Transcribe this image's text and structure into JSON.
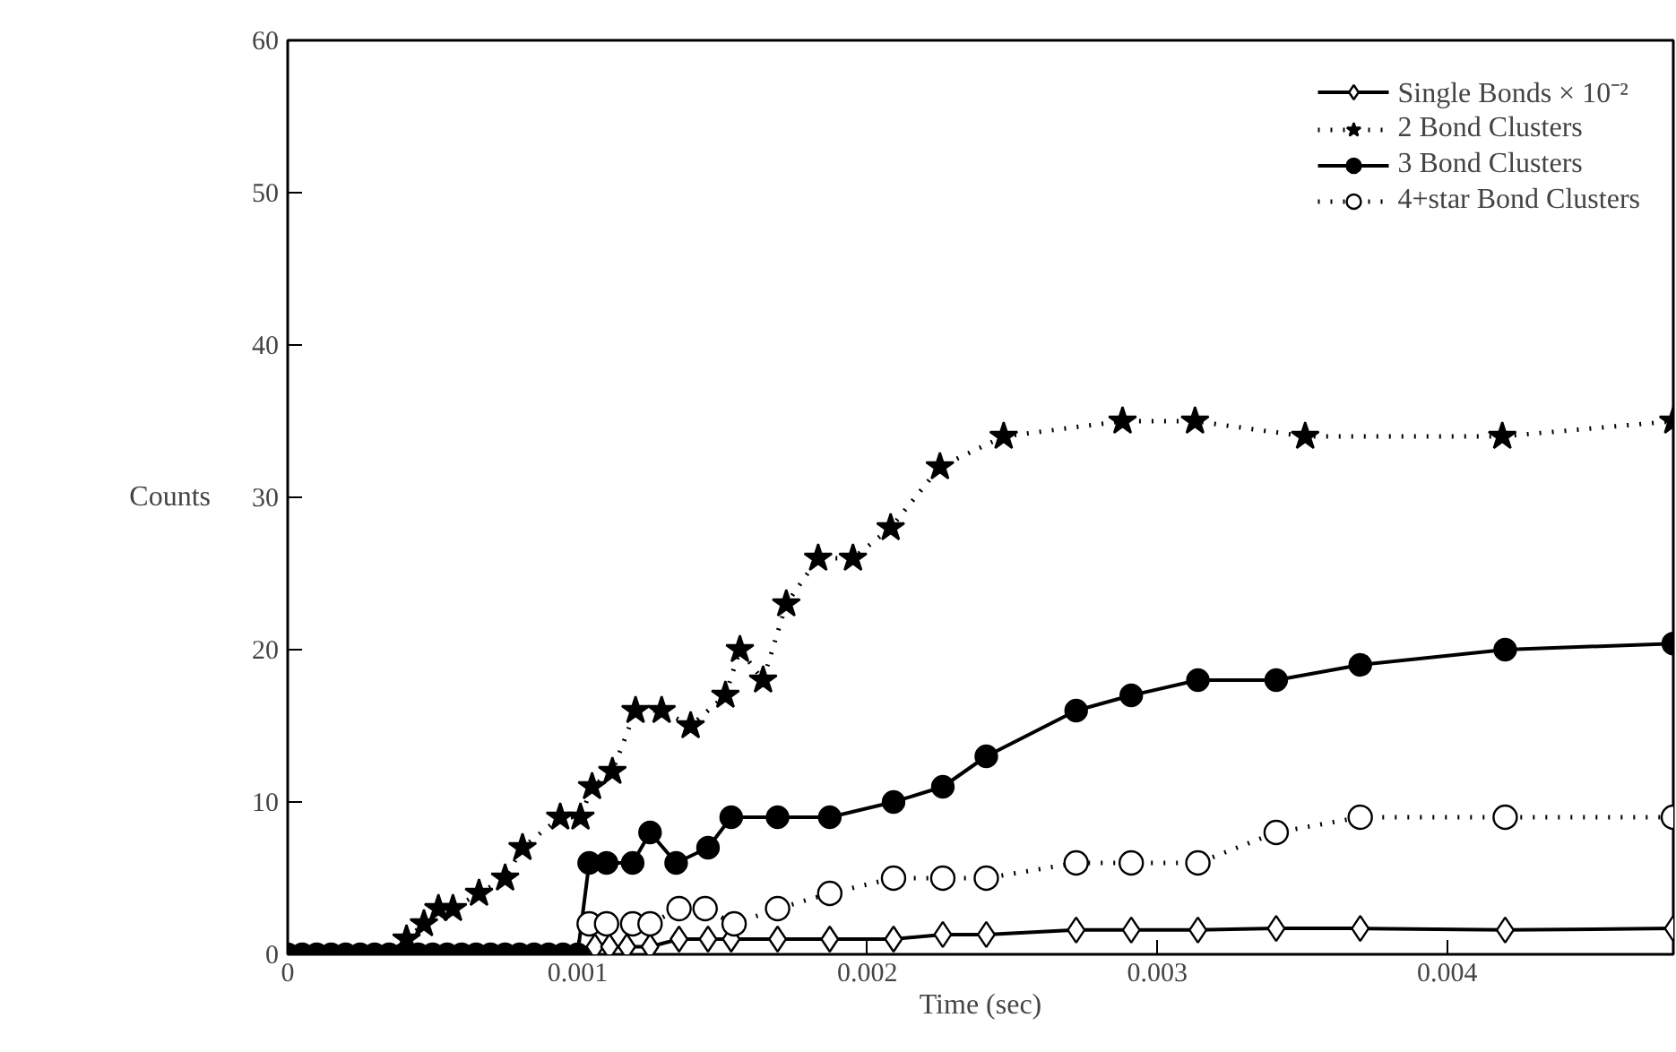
{
  "chart_data": {
    "type": "line",
    "xlabel": "Time (sec)",
    "ylabel": "Counts",
    "xlim": [
      0,
      0.00478
    ],
    "ylim": [
      0,
      60
    ],
    "xticks": [
      0,
      0.001,
      0.002,
      0.003,
      0.004
    ],
    "yticks": [
      0,
      10,
      20,
      30,
      40,
      50,
      60
    ],
    "grid": false,
    "legend": "top right",
    "series": [
      {
        "name": "Single Bonds × 10⁻²",
        "color": "#000000",
        "marker": "diamond",
        "line_style": "solid",
        "x": [
          0.00106,
          0.00111,
          0.00117,
          0.00125,
          0.00135,
          0.00145,
          0.00153,
          0.00169,
          0.00187,
          0.00209,
          0.00226,
          0.00241,
          0.00272,
          0.00291,
          0.00314,
          0.00341,
          0.0037,
          0.0042,
          0.00478
        ],
        "values": [
          0.5,
          0.5,
          0.5,
          0.5,
          1,
          1,
          1,
          1,
          1,
          1,
          1.3,
          1.3,
          1.6,
          1.6,
          1.6,
          1.7,
          1.7,
          1.6,
          1.7
        ]
      },
      {
        "name": "2 Bond Clusters",
        "color": "#000000",
        "marker": "star",
        "line_style": "dotted",
        "x": [
          0.00041,
          0.00047,
          0.00052,
          0.00057,
          0.00066,
          0.00075,
          0.00081,
          0.00094,
          0.00101,
          0.00105,
          0.00112,
          0.0012,
          0.00129,
          0.00139,
          0.00151,
          0.00156,
          0.00164,
          0.00172,
          0.00183,
          0.00195,
          0.00208,
          0.00225,
          0.00247,
          0.00288,
          0.00313,
          0.00351,
          0.00419,
          0.00478
        ],
        "values": [
          1,
          2,
          3,
          3,
          4,
          5,
          7,
          9,
          9,
          11,
          12,
          16,
          16,
          15,
          17,
          20,
          18,
          23,
          26,
          26,
          28,
          32,
          34,
          35,
          35,
          34,
          34,
          35
        ]
      },
      {
        "name": "3 Bond Clusters",
        "color": "#000000",
        "marker": "circle",
        "line_style": "solid",
        "x": [
          0,
          5e-05,
          0.0001,
          0.00015,
          0.0002,
          0.00025,
          0.0003,
          0.00035,
          0.0004,
          0.00045,
          0.0005,
          0.00055,
          0.0006,
          0.00065,
          0.0007,
          0.00075,
          0.0008,
          0.00085,
          0.0009,
          0.00095,
          0.001,
          0.00104,
          0.0011,
          0.00119,
          0.00125,
          0.00134,
          0.00145,
          0.00153,
          0.00169,
          0.00187,
          0.00209,
          0.00226,
          0.00241,
          0.00272,
          0.00291,
          0.00314,
          0.00341,
          0.0037,
          0.0042,
          0.00478
        ],
        "values": [
          0,
          0,
          0,
          0,
          0,
          0,
          0,
          0,
          0,
          0,
          0,
          0,
          0,
          0,
          0,
          0,
          0,
          0,
          0,
          0,
          0,
          6,
          6,
          6,
          8,
          6,
          7,
          9,
          9,
          9,
          10,
          11,
          13,
          16,
          17,
          18,
          18,
          19,
          20,
          20.4
        ]
      },
      {
        "name": "4+star Bond Clusters",
        "color": "#000000",
        "marker": "circle",
        "line_style": "dotted",
        "x": [
          0.00104,
          0.0011,
          0.00119,
          0.00125,
          0.00135,
          0.00144,
          0.00154,
          0.00169,
          0.00187,
          0.00209,
          0.00226,
          0.00241,
          0.00272,
          0.00291,
          0.00314,
          0.00341,
          0.0037,
          0.0042,
          0.00478
        ],
        "values": [
          2,
          2,
          2,
          2,
          3,
          3,
          2,
          3,
          4,
          5,
          5,
          5,
          6,
          6,
          6,
          8,
          9,
          9,
          9
        ]
      }
    ]
  }
}
